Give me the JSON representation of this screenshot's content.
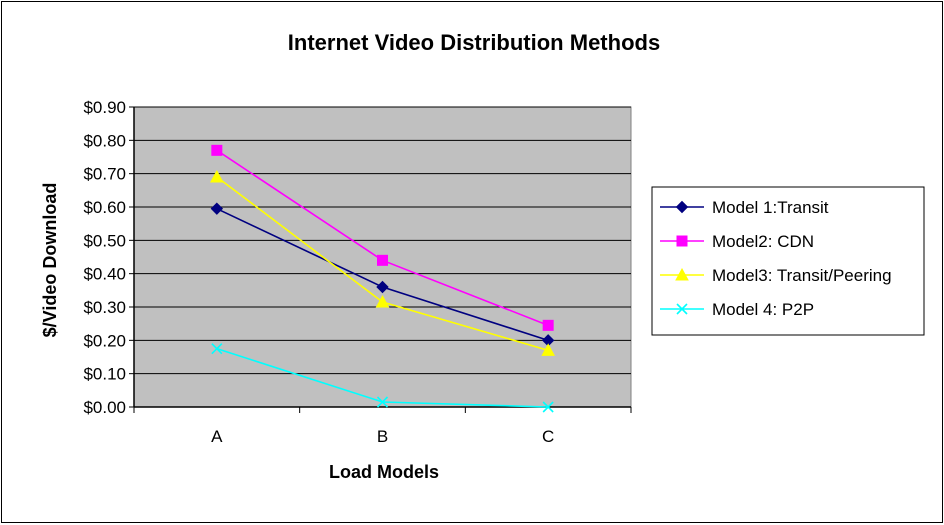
{
  "chart_data": {
    "type": "line",
    "title": "Internet Video Distribution Methods",
    "xlabel": "Load Models",
    "ylabel": "$/Video Download",
    "categories": [
      "A",
      "B",
      "C"
    ],
    "ylim": [
      0,
      0.9
    ],
    "yticks": [
      0.0,
      0.1,
      0.2,
      0.3,
      0.4,
      0.5,
      0.6,
      0.7,
      0.8,
      0.9
    ],
    "ytick_labels": [
      "$0.00",
      "$0.10",
      "$0.20",
      "$0.30",
      "$0.40",
      "$0.50",
      "$0.60",
      "$0.70",
      "$0.80",
      "$0.90"
    ],
    "grid": true,
    "plot_background": "#c0c0c0",
    "legend_position": "right",
    "series": [
      {
        "name": "Model 1:Transit",
        "values": [
          0.595,
          0.36,
          0.2
        ],
        "color": "#000080",
        "marker": "diamond"
      },
      {
        "name": "Model2: CDN",
        "values": [
          0.77,
          0.44,
          0.245
        ],
        "color": "#ff00ff",
        "marker": "square"
      },
      {
        "name": "Model3: Transit/Peering",
        "values": [
          0.69,
          0.315,
          0.17
        ],
        "color": "#ffff00",
        "marker": "triangle"
      },
      {
        "name": "Model 4: P2P",
        "values": [
          0.175,
          0.015,
          0.0
        ],
        "color": "#00ffff",
        "marker": "x"
      }
    ]
  }
}
